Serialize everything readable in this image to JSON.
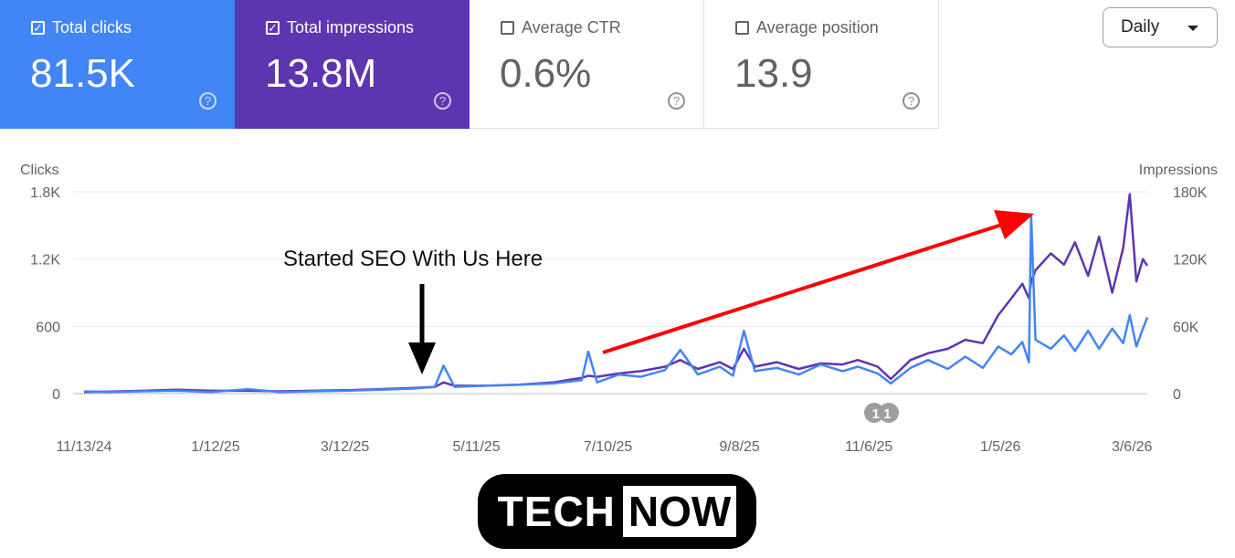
{
  "metrics": [
    {
      "label": "Total clicks",
      "value": "81.5K",
      "checked": true,
      "color": "#4285f4"
    },
    {
      "label": "Total impressions",
      "value": "13.8M",
      "checked": true,
      "color": "#5e35b1"
    },
    {
      "label": "Average CTR",
      "value": "0.6%",
      "checked": false
    },
    {
      "label": "Average position",
      "value": "13.9",
      "checked": false
    }
  ],
  "help_glyph": "?",
  "check_glyph": "✓",
  "period_select": {
    "value": "Daily"
  },
  "annotation_text": "Started SEO With Us Here",
  "event_badge": "1 1",
  "logo": {
    "part1": "TECH",
    "part2": "NOW"
  },
  "chart_data": {
    "type": "line",
    "ylabel_left": "Clicks",
    "ylabel_right": "Impressions",
    "ylim_left": [
      0,
      1800
    ],
    "ylim_right": [
      0,
      180000
    ],
    "yticks_left": [
      "0",
      "600",
      "1.2K",
      "1.8K"
    ],
    "yticks_right": [
      "0",
      "60K",
      "120K",
      "180K"
    ],
    "xticks": [
      "11/13/24",
      "1/12/25",
      "3/12/25",
      "5/11/25",
      "7/10/25",
      "9/8/25",
      "11/6/25",
      "1/5/26",
      "3/6/26"
    ],
    "grid": true,
    "x": [
      "11/13/24",
      "11/25/24",
      "12/10/24",
      "12/25/24",
      "1/10/25",
      "1/27/25",
      "2/10/25",
      "2/25/25",
      "3/12/25",
      "3/28/25",
      "4/12/25",
      "4/22/25",
      "4/26/25",
      "5/1/25",
      "5/15/25",
      "5/30/25",
      "6/15/25",
      "6/28/25",
      "7/1/25",
      "7/5/25",
      "7/15/25",
      "7/25/25",
      "8/5/25",
      "8/12/25",
      "8/20/25",
      "8/30/25",
      "9/5/25",
      "9/10/25",
      "9/15/25",
      "9/25/25",
      "10/5/25",
      "10/15/25",
      "10/25/25",
      "11/1/25",
      "11/10/25",
      "11/16/25",
      "11/25/25",
      "12/3/25",
      "12/12/25",
      "12/20/25",
      "12/28/25",
      "1/4/26",
      "1/10/26",
      "1/15/26",
      "1/18/26",
      "1/19/26",
      "1/21/26",
      "1/28/26",
      "2/3/26",
      "2/8/26",
      "2/14/26",
      "2/19/26",
      "2/25/26",
      "3/2/26",
      "3/5/26",
      "3/8/26",
      "3/11/26",
      "3/13/26"
    ],
    "series": [
      {
        "name": "Clicks",
        "axis": "left",
        "color": "#4285f4",
        "values": [
          20,
          15,
          20,
          25,
          15,
          40,
          15,
          20,
          25,
          35,
          45,
          60,
          250,
          60,
          70,
          80,
          90,
          120,
          375,
          100,
          170,
          150,
          210,
          390,
          170,
          240,
          160,
          560,
          200,
          230,
          170,
          260,
          200,
          240,
          180,
          90,
          230,
          300,
          220,
          330,
          230,
          420,
          350,
          460,
          280,
          1600,
          480,
          400,
          520,
          380,
          560,
          400,
          580,
          450,
          700,
          420,
          580,
          680
        ]
      },
      {
        "name": "Impressions",
        "axis": "right",
        "color": "#5e35b1",
        "values": [
          1500,
          1800,
          2500,
          3500,
          2500,
          2500,
          2000,
          2500,
          3000,
          4000,
          5000,
          6000,
          10000,
          7000,
          7000,
          8000,
          10000,
          14000,
          16000,
          15000,
          18000,
          20000,
          24000,
          30000,
          22000,
          28000,
          22000,
          40000,
          24000,
          28000,
          22000,
          27000,
          26000,
          30000,
          24000,
          13000,
          30000,
          36000,
          40000,
          48000,
          45000,
          70000,
          85000,
          98000,
          85000,
          100000,
          110000,
          125000,
          115000,
          135000,
          105000,
          140000,
          90000,
          130000,
          178000,
          100000,
          120000,
          114000
        ]
      }
    ]
  }
}
